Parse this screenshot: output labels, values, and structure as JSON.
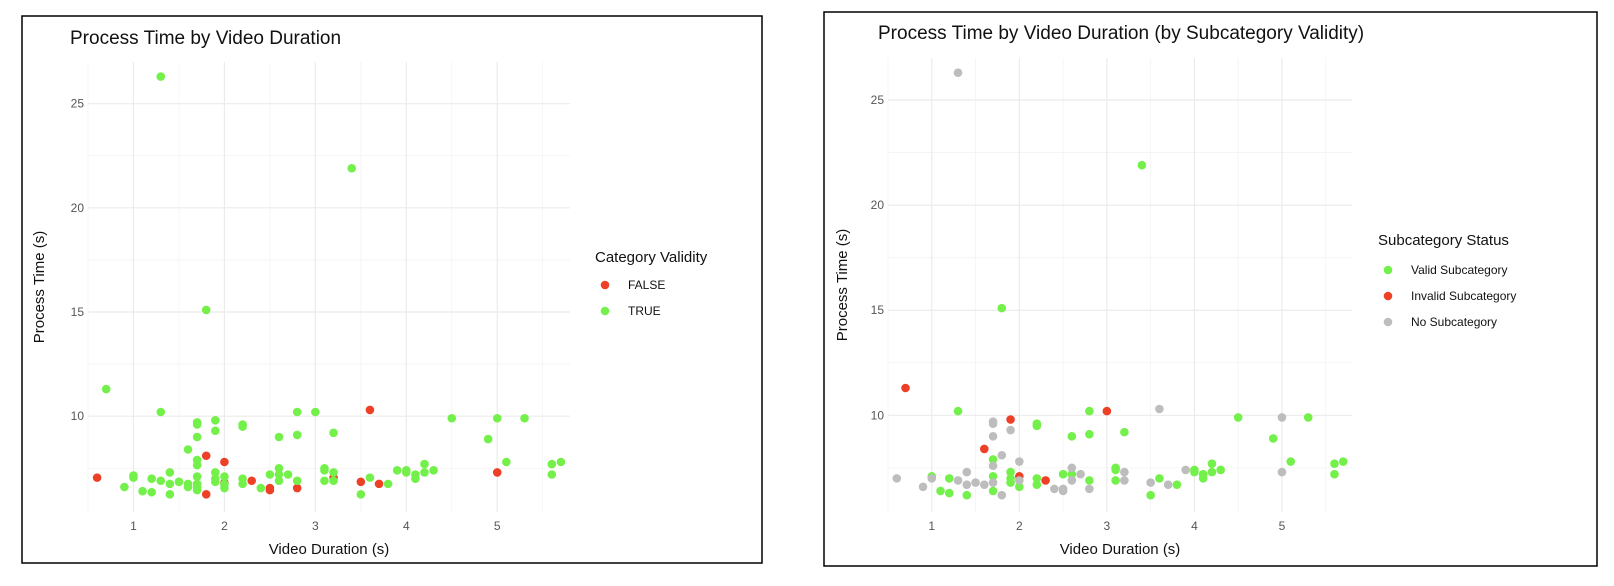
{
  "chart_data": [
    {
      "type": "scatter",
      "title": "Process Time by Video Duration",
      "xlabel": "Video Duration (s)",
      "ylabel": "Process Time (s)",
      "xlim": [
        0.5,
        5.8
      ],
      "ylim": [
        5.4,
        27
      ],
      "xticks": [
        "1",
        "2",
        "3",
        "4",
        "5"
      ],
      "yticks": [
        "10",
        "15",
        "20",
        "25"
      ],
      "grid": true,
      "legend": {
        "title": "Category Validity",
        "position": "right"
      },
      "series": [
        {
          "name": "FALSE",
          "color": "#ee4027",
          "points": [
            [
              0.6,
              7.05
            ],
            [
              1.8,
              8.1
            ],
            [
              1.8,
              6.25
            ],
            [
              2.0,
              7.8
            ],
            [
              2.0,
              6.8
            ],
            [
              2.3,
              6.9
            ],
            [
              2.5,
              6.55
            ],
            [
              2.5,
              6.45
            ],
            [
              2.8,
              6.55
            ],
            [
              3.2,
              7.05
            ],
            [
              3.5,
              6.85
            ],
            [
              3.6,
              10.3
            ],
            [
              3.7,
              6.75
            ],
            [
              5.0,
              7.3
            ]
          ]
        },
        {
          "name": "TRUE",
          "color": "#74f04a",
          "points": [
            [
              0.7,
              11.3
            ],
            [
              0.9,
              6.6
            ],
            [
              1.0,
              7.15
            ],
            [
              1.0,
              7.05
            ],
            [
              1.1,
              6.4
            ],
            [
              1.2,
              7.0
            ],
            [
              1.2,
              6.35
            ],
            [
              1.3,
              10.2
            ],
            [
              1.3,
              26.3
            ],
            [
              1.3,
              6.9
            ],
            [
              1.4,
              7.3
            ],
            [
              1.4,
              6.75
            ],
            [
              1.4,
              6.25
            ],
            [
              1.5,
              6.85
            ],
            [
              1.6,
              8.4
            ],
            [
              1.6,
              6.75
            ],
            [
              1.6,
              6.6
            ],
            [
              1.7,
              9.7
            ],
            [
              1.7,
              9.6
            ],
            [
              1.7,
              9.0
            ],
            [
              1.7,
              7.9
            ],
            [
              1.7,
              7.65
            ],
            [
              1.7,
              7.1
            ],
            [
              1.7,
              6.75
            ],
            [
              1.7,
              6.6
            ],
            [
              1.7,
              6.45
            ],
            [
              1.8,
              15.1
            ],
            [
              1.9,
              9.8
            ],
            [
              1.9,
              9.3
            ],
            [
              1.9,
              7.3
            ],
            [
              1.9,
              7.0
            ],
            [
              1.9,
              6.85
            ],
            [
              2.0,
              7.1
            ],
            [
              2.0,
              6.75
            ],
            [
              2.0,
              6.55
            ],
            [
              2.2,
              9.6
            ],
            [
              2.2,
              9.5
            ],
            [
              2.2,
              7.0
            ],
            [
              2.2,
              6.75
            ],
            [
              2.4,
              6.55
            ],
            [
              2.5,
              7.2
            ],
            [
              2.6,
              9.0
            ],
            [
              2.6,
              7.5
            ],
            [
              2.6,
              7.2
            ],
            [
              2.6,
              6.9
            ],
            [
              2.7,
              7.2
            ],
            [
              2.8,
              10.2
            ],
            [
              2.8,
              9.1
            ],
            [
              2.8,
              6.9
            ],
            [
              3.0,
              10.2
            ],
            [
              3.1,
              7.5
            ],
            [
              3.1,
              7.4
            ],
            [
              3.1,
              6.9
            ],
            [
              3.2,
              9.2
            ],
            [
              3.2,
              7.3
            ],
            [
              3.2,
              6.9
            ],
            [
              3.4,
              21.9
            ],
            [
              3.5,
              6.25
            ],
            [
              3.6,
              7.05
            ],
            [
              3.8,
              6.75
            ],
            [
              3.9,
              7.4
            ],
            [
              4.0,
              7.4
            ],
            [
              4.0,
              7.3
            ],
            [
              4.1,
              7.2
            ],
            [
              4.1,
              7.0
            ],
            [
              4.2,
              7.7
            ],
            [
              4.2,
              7.3
            ],
            [
              4.3,
              7.4
            ],
            [
              4.5,
              9.9
            ],
            [
              4.9,
              8.9
            ],
            [
              5.0,
              9.9
            ],
            [
              5.1,
              7.8
            ],
            [
              5.3,
              9.9
            ],
            [
              5.6,
              7.7
            ],
            [
              5.6,
              7.2
            ],
            [
              5.7,
              7.8
            ]
          ]
        }
      ]
    },
    {
      "type": "scatter",
      "title": "Process Time by Video Duration (by Subcategory Validity)",
      "xlabel": "Video Duration (s)",
      "ylabel": "Process Time (s)",
      "xlim": [
        0.5,
        5.8
      ],
      "ylim": [
        5.4,
        27
      ],
      "xticks": [
        "1",
        "2",
        "3",
        "4",
        "5"
      ],
      "yticks": [
        "10",
        "15",
        "20",
        "25"
      ],
      "grid": true,
      "legend": {
        "title": "Subcategory Status",
        "position": "right"
      },
      "series": [
        {
          "name": "Valid Subcategory",
          "color": "#74f04a",
          "points": [
            [
              1.0,
              7.1
            ],
            [
              1.1,
              6.4
            ],
            [
              1.2,
              7.0
            ],
            [
              1.2,
              6.3
            ],
            [
              1.3,
              10.2
            ],
            [
              1.4,
              6.2
            ],
            [
              1.7,
              7.9
            ],
            [
              1.7,
              7.1
            ],
            [
              1.7,
              6.4
            ],
            [
              1.8,
              15.1
            ],
            [
              1.9,
              7.3
            ],
            [
              1.9,
              7.0
            ],
            [
              1.9,
              6.8
            ],
            [
              2.0,
              6.6
            ],
            [
              2.2,
              9.6
            ],
            [
              2.2,
              9.5
            ],
            [
              2.2,
              7.0
            ],
            [
              2.2,
              6.7
            ],
            [
              2.5,
              7.2
            ],
            [
              2.6,
              9.0
            ],
            [
              2.6,
              7.2
            ],
            [
              2.8,
              10.2
            ],
            [
              2.8,
              9.1
            ],
            [
              2.8,
              6.9
            ],
            [
              3.1,
              7.5
            ],
            [
              3.1,
              7.4
            ],
            [
              3.1,
              6.9
            ],
            [
              3.2,
              9.2
            ],
            [
              3.4,
              21.9
            ],
            [
              3.5,
              6.2
            ],
            [
              3.6,
              7.0
            ],
            [
              3.8,
              6.7
            ],
            [
              4.0,
              7.4
            ],
            [
              4.0,
              7.3
            ],
            [
              4.1,
              7.2
            ],
            [
              4.1,
              7.0
            ],
            [
              4.2,
              7.7
            ],
            [
              4.2,
              7.3
            ],
            [
              4.3,
              7.4
            ],
            [
              4.5,
              9.9
            ],
            [
              4.9,
              8.9
            ],
            [
              5.1,
              7.8
            ],
            [
              5.3,
              9.9
            ],
            [
              5.6,
              7.7
            ],
            [
              5.6,
              7.2
            ],
            [
              5.7,
              7.8
            ]
          ]
        },
        {
          "name": "Invalid Subcategory",
          "color": "#ee4027",
          "points": [
            [
              0.7,
              11.3
            ],
            [
              1.6,
              8.4
            ],
            [
              1.9,
              9.8
            ],
            [
              2.0,
              7.1
            ],
            [
              2.3,
              6.9
            ],
            [
              3.0,
              10.2
            ]
          ]
        },
        {
          "name": "No Subcategory",
          "color": "#bdbdbd",
          "points": [
            [
              0.6,
              7.0
            ],
            [
              0.9,
              6.6
            ],
            [
              1.0,
              7.0
            ],
            [
              1.3,
              26.3
            ],
            [
              1.3,
              6.9
            ],
            [
              1.4,
              7.3
            ],
            [
              1.4,
              6.7
            ],
            [
              1.5,
              6.8
            ],
            [
              1.6,
              6.7
            ],
            [
              1.7,
              9.7
            ],
            [
              1.7,
              9.6
            ],
            [
              1.7,
              9.0
            ],
            [
              1.7,
              7.6
            ],
            [
              1.7,
              6.8
            ],
            [
              1.8,
              8.1
            ],
            [
              1.8,
              6.2
            ],
            [
              1.9,
              9.3
            ],
            [
              2.0,
              7.8
            ],
            [
              2.0,
              6.9
            ],
            [
              2.4,
              6.5
            ],
            [
              2.5,
              6.5
            ],
            [
              2.5,
              6.4
            ],
            [
              2.6,
              7.5
            ],
            [
              2.6,
              6.9
            ],
            [
              2.7,
              7.2
            ],
            [
              2.8,
              6.5
            ],
            [
              3.2,
              7.3
            ],
            [
              3.2,
              6.9
            ],
            [
              3.5,
              6.8
            ],
            [
              3.6,
              10.3
            ],
            [
              3.7,
              6.7
            ],
            [
              3.9,
              7.4
            ],
            [
              5.0,
              9.9
            ],
            [
              5.0,
              7.3
            ]
          ]
        }
      ]
    }
  ]
}
